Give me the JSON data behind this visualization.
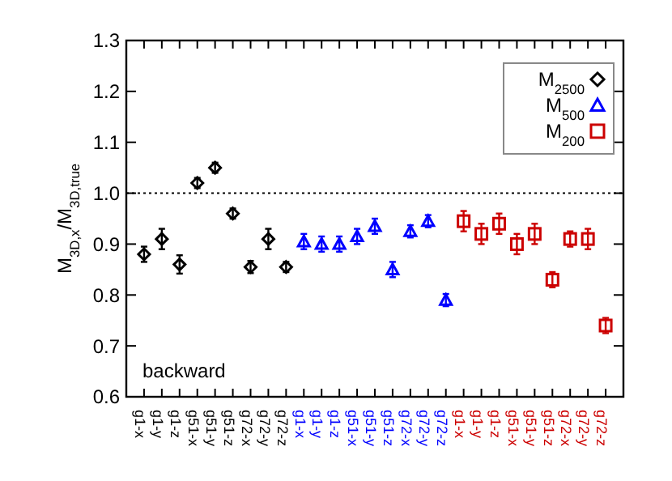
{
  "chart_data": {
    "type": "scatter",
    "ylabel": "M$_{3D,x}$/M$_{3D,true}$",
    "categories": [
      "g1-x",
      "g1-y",
      "g1-z",
      "g51-x",
      "g51-y",
      "g51-z",
      "g72-x",
      "g72-y",
      "g72-z",
      "g1-x",
      "g1-y",
      "g1-z",
      "g51-x",
      "g51-y",
      "g51-z",
      "g72-x",
      "g72-y",
      "g72-z",
      "g1-x",
      "g1-y",
      "g1-z",
      "g51-x",
      "g51-y",
      "g51-z",
      "g72-x",
      "g72-y",
      "g72-z"
    ],
    "series": [
      {
        "name": "M$_{2500}$",
        "color": "#000000",
        "marker": "diamond",
        "values": [
          0.88,
          0.91,
          0.86,
          1.02,
          1.05,
          0.96,
          0.855,
          0.91,
          0.855,
          null,
          null,
          null,
          null,
          null,
          null,
          null,
          null,
          null,
          null,
          null,
          null,
          null,
          null,
          null,
          null,
          null,
          null
        ],
        "errors": [
          0.015,
          0.02,
          0.018,
          0.01,
          0.01,
          0.01,
          0.012,
          0.02,
          0.01,
          null,
          null,
          null,
          null,
          null,
          null,
          null,
          null,
          null,
          null,
          null,
          null,
          null,
          null,
          null,
          null,
          null,
          null
        ]
      },
      {
        "name": "M$_{500}$",
        "color": "#0000ff",
        "marker": "triangle",
        "values": [
          null,
          null,
          null,
          null,
          null,
          null,
          null,
          null,
          null,
          0.905,
          0.9,
          0.9,
          0.915,
          0.935,
          0.85,
          0.925,
          0.945,
          0.79,
          null,
          null,
          null,
          null,
          null,
          null,
          null,
          null,
          null
        ],
        "errors": [
          null,
          null,
          null,
          null,
          null,
          null,
          null,
          null,
          null,
          0.015,
          0.015,
          0.015,
          0.015,
          0.015,
          0.015,
          0.012,
          0.012,
          0.012,
          null,
          null,
          null,
          null,
          null,
          null,
          null,
          null,
          null
        ]
      },
      {
        "name": "M$_{200}$",
        "color": "#cc0000",
        "marker": "square",
        "values": [
          null,
          null,
          null,
          null,
          null,
          null,
          null,
          null,
          null,
          null,
          null,
          null,
          null,
          null,
          null,
          null,
          null,
          null,
          0.945,
          0.92,
          0.94,
          0.9,
          0.92,
          0.83,
          0.91,
          0.91,
          0.74
        ],
        "errors": [
          null,
          null,
          null,
          null,
          null,
          null,
          null,
          null,
          null,
          null,
          null,
          null,
          null,
          null,
          null,
          null,
          null,
          null,
          0.02,
          0.02,
          0.02,
          0.02,
          0.02,
          0.015,
          0.015,
          0.02,
          0.015
        ]
      }
    ],
    "ylim": [
      0.6,
      1.3
    ],
    "yticks": [
      0.6,
      0.7,
      0.8,
      0.9,
      {
        "value": 1,
        "label": "1.0"
      },
      1.1,
      1.2,
      1.3
    ],
    "ref_lines": [
      {
        "axis": "y",
        "value": 1,
        "line_style": "dotted",
        "color": "#000000"
      }
    ],
    "annotations": [
      "backward"
    ],
    "legend": "top right",
    "grid": false
  }
}
